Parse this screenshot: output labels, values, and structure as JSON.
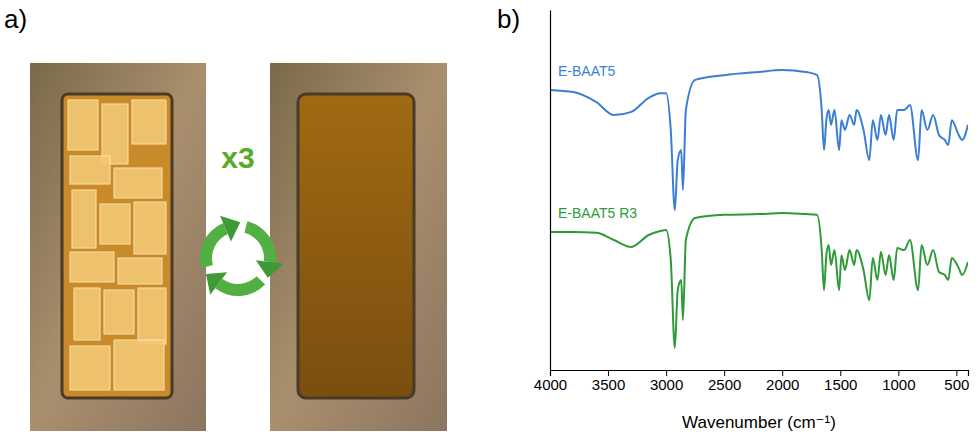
{
  "panels": [
    {
      "label": "a)",
      "cycle_text": "x3"
    },
    {
      "label": "b)"
    }
  ],
  "chart_data": {
    "type": "line",
    "x_label": "Wavenumber (cm⁻¹)",
    "x": [
      4000,
      3800,
      3600,
      3450,
      3300,
      3150,
      3050,
      3000,
      2960,
      2925,
      2900,
      2870,
      2855,
      2830,
      2750,
      2500,
      2200,
      2000,
      1800,
      1700,
      1660,
      1640,
      1620,
      1600,
      1580,
      1550,
      1510,
      1490,
      1460,
      1420,
      1380,
      1360,
      1300,
      1250,
      1220,
      1180,
      1150,
      1110,
      1080,
      1040,
      1010,
      950,
      900,
      830,
      800,
      750,
      700,
      650,
      600,
      570,
      540,
      480,
      450,
      400
    ],
    "series": [
      {
        "name": "E-BAAT5",
        "color": "#3a7fd5",
        "values": [
          77.8,
          77.2,
          74.4,
          70.8,
          71.7,
          75.6,
          76.9,
          76.9,
          66.7,
          44.4,
          58.3,
          61.1,
          50,
          72.2,
          80.6,
          81.9,
          82.8,
          83.3,
          82.8,
          81.9,
          72.2,
          61.1,
          69.4,
          72.2,
          68.1,
          72.2,
          61.1,
          69.4,
          66.7,
          70.8,
          68.1,
          72.2,
          66.7,
          58.3,
          69.4,
          63.9,
          70.8,
          65.3,
          70.8,
          63.9,
          72.2,
          72.2,
          73.6,
          58.3,
          72.2,
          66.7,
          70.8,
          65.3,
          63.9,
          62.5,
          69.4,
          65.3,
          63.9,
          68.1
        ]
      },
      {
        "name": "E-BAAT5 R3",
        "color": "#2e9a3a",
        "values": [
          38.3,
          38.3,
          38.1,
          36.1,
          34.2,
          37.5,
          38.6,
          38.9,
          30.6,
          6.1,
          22.2,
          25,
          13.9,
          36.1,
          42.2,
          43.1,
          43.3,
          43.6,
          43.3,
          43.1,
          33.3,
          22.2,
          31.9,
          34.7,
          29.2,
          33.3,
          22.2,
          31.9,
          27.8,
          33.3,
          29.2,
          33.3,
          27.8,
          19.4,
          31.1,
          25,
          32.8,
          26.4,
          31.9,
          25,
          33.9,
          33.3,
          36.1,
          22.2,
          34.7,
          29.2,
          33.3,
          27.2,
          26.4,
          25,
          31.1,
          28.3,
          26.4,
          30
        ]
      }
    ],
    "xlim": [
      4000,
      400
    ],
    "xticks": [
      4000,
      3500,
      3000,
      2500,
      2000,
      1500,
      1000,
      500
    ],
    "ylim": [
      0,
      100
    ],
    "tick_labels": "x",
    "grid": false
  }
}
